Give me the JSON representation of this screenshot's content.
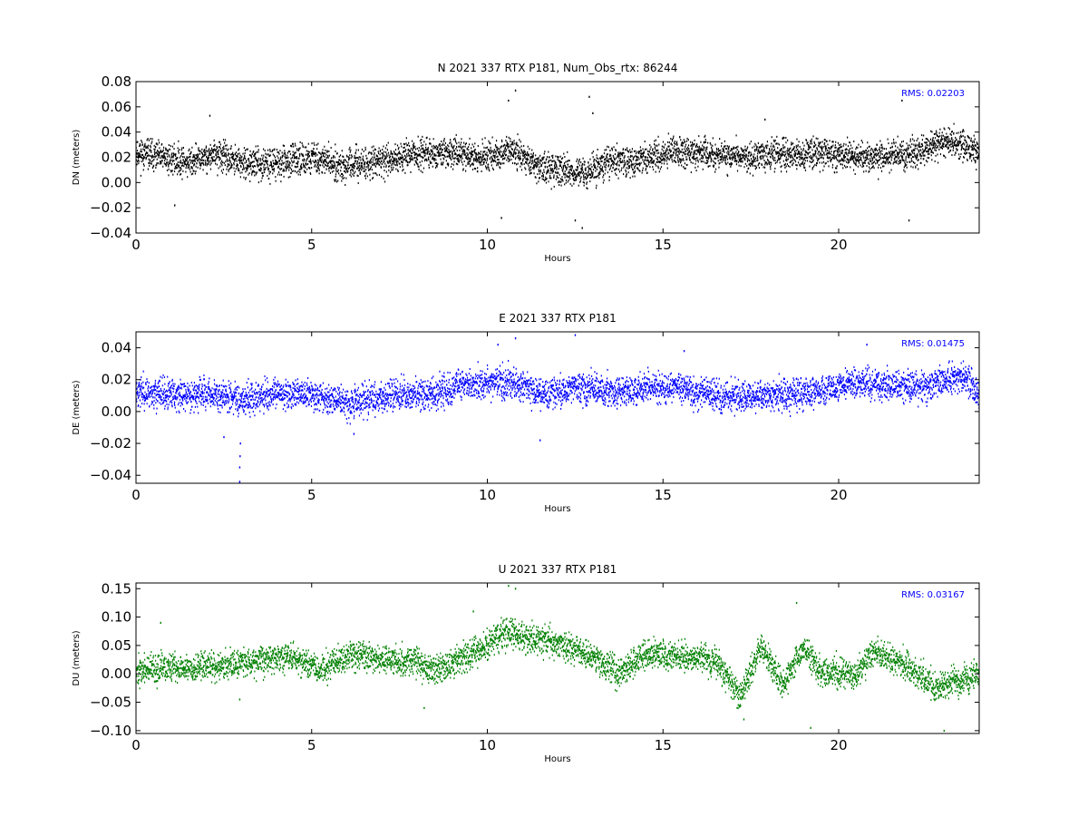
{
  "figure": {
    "background": "#ffffff"
  },
  "chart_data": [
    {
      "type": "scatter",
      "title": "N 2021 337 RTX  P181, Num_Obs_rtx: 86244",
      "xlabel": "Hours",
      "ylabel": "DN (meters)",
      "xlim": [
        0,
        24
      ],
      "ylim": [
        -0.04,
        0.08
      ],
      "xticks": [
        0,
        5,
        10,
        15,
        20
      ],
      "xtick_labels": [
        "0",
        "5",
        "10",
        "15",
        "20"
      ],
      "yticks": [
        -0.04,
        -0.02,
        0.0,
        0.02,
        0.04,
        0.06,
        0.08
      ],
      "ytick_labels": [
        "−0.04",
        "−0.02",
        "0.00",
        "0.02",
        "0.04",
        "0.06",
        "0.08"
      ],
      "annotation": "RMS:  0.02203",
      "annotation_color": "#0000ff",
      "series_color": "#000000",
      "grid": false,
      "trend": {
        "x": [
          0,
          0.5,
          1.5,
          2.3,
          3.0,
          3.6,
          4.5,
          5.0,
          6.0,
          7.0,
          8.0,
          9.0,
          10.0,
          10.7,
          11.5,
          12.3,
          12.8,
          13.5,
          14.5,
          15.3,
          16.5,
          17.5,
          18.5,
          19.5,
          20.5,
          21.5,
          22.2,
          23.0,
          24.0
        ],
        "y": [
          0.024,
          0.021,
          0.016,
          0.022,
          0.015,
          0.015,
          0.017,
          0.02,
          0.013,
          0.017,
          0.023,
          0.023,
          0.02,
          0.025,
          0.012,
          0.01,
          0.006,
          0.017,
          0.018,
          0.025,
          0.022,
          0.02,
          0.022,
          0.024,
          0.02,
          0.021,
          0.022,
          0.032,
          0.026
        ]
      },
      "spread": 0.008,
      "point_count": 5200,
      "random_seed": 11,
      "outliers": [
        {
          "x": 10.8,
          "y": 0.073
        },
        {
          "x": 10.6,
          "y": 0.065
        },
        {
          "x": 12.9,
          "y": 0.068
        },
        {
          "x": 12.7,
          "y": -0.036
        },
        {
          "x": 12.5,
          "y": -0.03
        },
        {
          "x": 22.0,
          "y": -0.03
        },
        {
          "x": 21.8,
          "y": 0.065
        },
        {
          "x": 10.4,
          "y": -0.028
        },
        {
          "x": 13.0,
          "y": 0.055
        },
        {
          "x": 2.1,
          "y": 0.053
        },
        {
          "x": 17.9,
          "y": 0.05
        },
        {
          "x": 1.1,
          "y": -0.018
        }
      ]
    },
    {
      "type": "scatter",
      "title": "E 2021 337 RTX  P181",
      "xlabel": "Hours",
      "ylabel": "DE (meters)",
      "xlim": [
        0,
        24
      ],
      "ylim": [
        -0.045,
        0.05
      ],
      "xticks": [
        0,
        5,
        10,
        15,
        20
      ],
      "xtick_labels": [
        "0",
        "5",
        "10",
        "15",
        "20"
      ],
      "yticks": [
        -0.04,
        -0.02,
        0.0,
        0.02,
        0.04
      ],
      "ytick_labels": [
        "−0.04",
        "−0.02",
        "0.00",
        "0.02",
        "0.04"
      ],
      "annotation": "RMS:  0.01475",
      "annotation_color": "#0000ff",
      "series_color": "#0000ff",
      "grid": false,
      "trend": {
        "x": [
          0,
          1.0,
          2.0,
          3.0,
          4.5,
          5.5,
          6.0,
          7.0,
          8.5,
          9.5,
          10.5,
          11.0,
          11.7,
          12.5,
          13.5,
          14.5,
          15.5,
          16.5,
          17.5,
          18.5,
          19.5,
          20.5,
          21.5,
          22.5,
          23.5,
          24.0
        ],
        "y": [
          0.013,
          0.01,
          0.011,
          0.008,
          0.012,
          0.008,
          0.006,
          0.009,
          0.012,
          0.017,
          0.019,
          0.017,
          0.01,
          0.015,
          0.012,
          0.014,
          0.015,
          0.01,
          0.009,
          0.011,
          0.013,
          0.018,
          0.016,
          0.016,
          0.022,
          0.012
        ]
      },
      "spread": 0.0065,
      "point_count": 5200,
      "random_seed": 23,
      "outliers": [
        {
          "x": 2.95,
          "y": -0.044
        },
        {
          "x": 2.95,
          "y": -0.035
        },
        {
          "x": 2.96,
          "y": -0.028
        },
        {
          "x": 2.97,
          "y": -0.02
        },
        {
          "x": 2.5,
          "y": -0.016
        },
        {
          "x": 12.5,
          "y": 0.048
        },
        {
          "x": 10.8,
          "y": 0.046
        },
        {
          "x": 10.3,
          "y": 0.042
        },
        {
          "x": 20.8,
          "y": 0.042
        },
        {
          "x": 15.6,
          "y": 0.038
        },
        {
          "x": 11.5,
          "y": -0.018
        },
        {
          "x": 6.2,
          "y": -0.014
        }
      ]
    },
    {
      "type": "scatter",
      "title": "U 2021 337 RTX  P181",
      "xlabel": "Hours",
      "ylabel": "DU (meters)",
      "xlim": [
        0,
        24
      ],
      "ylim": [
        -0.105,
        0.16
      ],
      "xticks": [
        0,
        5,
        10,
        15,
        20
      ],
      "xtick_labels": [
        "0",
        "5",
        "10",
        "15",
        "20"
      ],
      "yticks": [
        -0.1,
        -0.05,
        0.0,
        0.05,
        0.1,
        0.15
      ],
      "ytick_labels": [
        "−0.10",
        "−0.05",
        "0.00",
        "0.05",
        "0.10",
        "0.15"
      ],
      "annotation": "RMS:  0.03167",
      "annotation_color": "#0000ff",
      "series_color": "#008000",
      "grid": false,
      "trend": {
        "x": [
          0,
          1.0,
          2.5,
          3.5,
          4.5,
          5.2,
          6.2,
          7.0,
          8.0,
          8.5,
          9.5,
          10.5,
          11.0,
          12.0,
          13.0,
          13.7,
          14.5,
          15.5,
          16.5,
          17.2,
          17.8,
          18.4,
          19.0,
          19.5,
          20.5,
          21.0,
          22.0,
          22.8,
          24.0
        ],
        "y": [
          0.005,
          0.01,
          0.015,
          0.025,
          0.03,
          0.005,
          0.035,
          0.025,
          0.02,
          0.005,
          0.035,
          0.07,
          0.065,
          0.055,
          0.03,
          0.0,
          0.035,
          0.03,
          0.025,
          -0.04,
          0.05,
          -0.02,
          0.05,
          0.0,
          0.0,
          0.04,
          0.01,
          -0.025,
          0.0
        ]
      },
      "spread": 0.017,
      "point_count": 5200,
      "random_seed": 37,
      "outliers": [
        {
          "x": 10.6,
          "y": 0.155
        },
        {
          "x": 10.8,
          "y": 0.15
        },
        {
          "x": 18.8,
          "y": 0.125
        },
        {
          "x": 19.2,
          "y": -0.095
        },
        {
          "x": 23.0,
          "y": -0.1
        },
        {
          "x": 17.3,
          "y": -0.08
        },
        {
          "x": 9.6,
          "y": 0.11
        },
        {
          "x": 8.2,
          "y": -0.06
        },
        {
          "x": 2.95,
          "y": -0.045
        },
        {
          "x": 0.7,
          "y": 0.09
        }
      ]
    }
  ]
}
